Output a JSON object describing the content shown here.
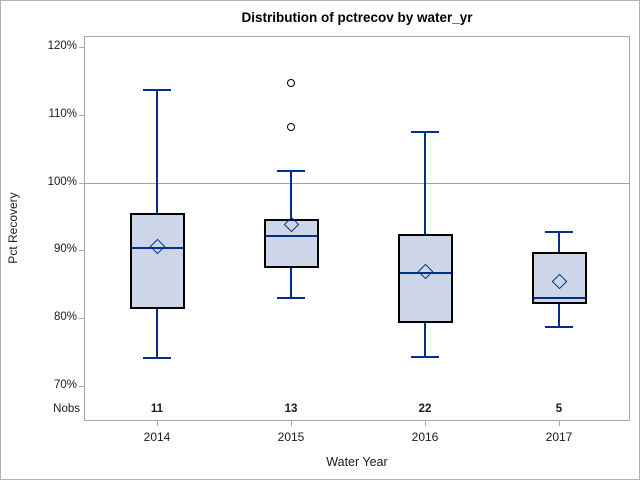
{
  "chart_data": {
    "type": "box",
    "title": "Distribution of pctrecov by water_yr",
    "xlabel": "Water Year",
    "ylabel": "Pct Recovery",
    "nobs_label": "Nobs",
    "grid": false,
    "legend_position": "none",
    "reference_line": 100,
    "y_ticks": [
      70,
      80,
      90,
      100,
      110,
      120
    ],
    "y_tick_labels": [
      "70%",
      "80%",
      "90%",
      "100%",
      "110%",
      "120%"
    ],
    "ylim_ticks": [
      70,
      120
    ],
    "categories": [
      "2014",
      "2015",
      "2016",
      "2017"
    ],
    "boxes": [
      {
        "category": "2014",
        "nobs": "11",
        "whisker_low": 74.0,
        "q1": 81.4,
        "median": 90.4,
        "q3": 95.5,
        "whisker_high": 113.8,
        "mean": 90.6,
        "outliers": []
      },
      {
        "category": "2015",
        "nobs": "13",
        "whisker_low": 82.8,
        "q1": 87.4,
        "median": 92.1,
        "q3": 94.7,
        "whisker_high": 101.9,
        "mean": 93.8,
        "outliers": [
          108.2,
          114.7
        ]
      },
      {
        "category": "2016",
        "nobs": "22",
        "whisker_low": 74.2,
        "q1": 79.3,
        "median": 86.7,
        "q3": 92.4,
        "whisker_high": 107.6,
        "mean": 86.9,
        "outliers": []
      },
      {
        "category": "2017",
        "nobs": "5",
        "whisker_low": 78.6,
        "q1": 82.1,
        "median": 83.0,
        "q3": 89.8,
        "whisker_high": 92.9,
        "mean": 85.4,
        "outliers": []
      }
    ],
    "colors": {
      "box_fill": "#ccd6e8",
      "box_border": "#000000",
      "line": "#00308c",
      "frame": "#a6a6a6",
      "refline": "#a0a0a0",
      "text": "#1a1a1a",
      "title_text": "#000000"
    }
  }
}
